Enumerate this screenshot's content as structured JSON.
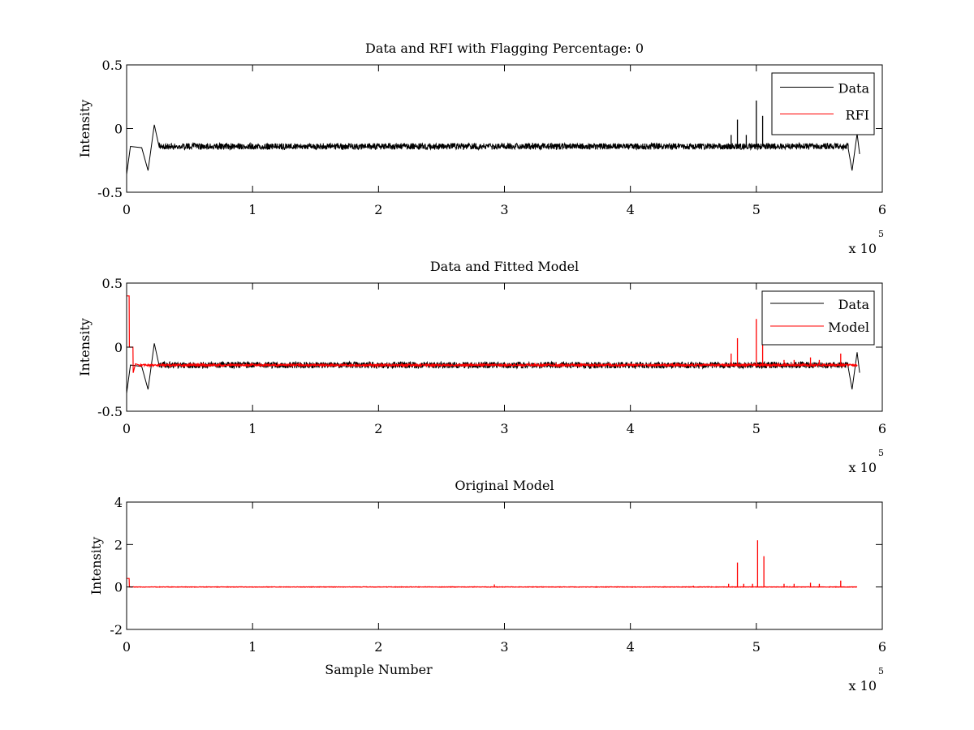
{
  "chart_data": [
    {
      "type": "line",
      "title": "Data and RFI with Flagging Percentage: 0",
      "xlabel": "",
      "ylabel": "Intensity",
      "xlim": [
        0,
        6
      ],
      "ylim": [
        -0.5,
        0.5
      ],
      "x_ticks": [
        "0",
        "1",
        "2",
        "3",
        "4",
        "5",
        "6"
      ],
      "y_ticks": [
        "0.5",
        "0",
        "-0.5"
      ],
      "x_multiplier": "x 10",
      "x_multiplier_exp": "5",
      "grid": false,
      "legend": "top-right",
      "series": [
        {
          "name": "Data",
          "color": "#000000",
          "baseline": -0.14,
          "noise": 0.025,
          "x_end": 5.8,
          "features": [
            {
              "x": 0.0,
              "y": -0.36
            },
            {
              "x": 0.03,
              "y": -0.14
            },
            {
              "x": 0.12,
              "y": -0.15
            },
            {
              "x": 0.17,
              "y": -0.33
            },
            {
              "x": 0.22,
              "y": 0.03
            },
            {
              "x": 0.26,
              "y": -0.15
            },
            {
              "x": 5.73,
              "y": -0.16
            },
            {
              "x": 5.76,
              "y": -0.33
            },
            {
              "x": 5.8,
              "y": -0.04
            },
            {
              "x": 5.82,
              "y": -0.2
            }
          ],
          "spikes": [
            {
              "x": 4.8,
              "y": -0.05
            },
            {
              "x": 4.85,
              "y": 0.07
            },
            {
              "x": 4.92,
              "y": -0.05
            },
            {
              "x": 5.0,
              "y": 0.22
            },
            {
              "x": 5.05,
              "y": 0.1
            }
          ]
        },
        {
          "name": "RFI",
          "color": "#ff0000",
          "values_note": "no visible red trace"
        }
      ]
    },
    {
      "type": "line",
      "title": "Data and Fitted Model",
      "xlabel": "",
      "ylabel": "Intensity",
      "xlim": [
        0,
        6
      ],
      "ylim": [
        -0.5,
        0.5
      ],
      "x_ticks": [
        "0",
        "1",
        "2",
        "3",
        "4",
        "5",
        "6"
      ],
      "y_ticks": [
        "0.5",
        "0",
        "-0.5"
      ],
      "x_multiplier": "x 10",
      "x_multiplier_exp": "5",
      "grid": false,
      "legend": "top-right",
      "series": [
        {
          "name": "Data",
          "color": "#000000",
          "baseline": -0.14,
          "noise": 0.025,
          "x_end": 5.8,
          "features": [
            {
              "x": 0.0,
              "y": -0.36
            },
            {
              "x": 0.03,
              "y": -0.14
            },
            {
              "x": 0.12,
              "y": -0.15
            },
            {
              "x": 0.17,
              "y": -0.33
            },
            {
              "x": 0.22,
              "y": 0.03
            },
            {
              "x": 0.26,
              "y": -0.15
            },
            {
              "x": 5.73,
              "y": -0.16
            },
            {
              "x": 5.76,
              "y": -0.33
            },
            {
              "x": 5.8,
              "y": -0.04
            },
            {
              "x": 5.82,
              "y": -0.2
            }
          ],
          "spikes": []
        },
        {
          "name": "Model",
          "color": "#ff0000",
          "baseline": -0.14,
          "noise": 0.008,
          "x_end": 5.8,
          "features": [
            {
              "x": 0.0,
              "y": 0.4
            },
            {
              "x": 0.02,
              "y": 0.4
            },
            {
              "x": 0.022,
              "y": 0.0
            },
            {
              "x": 0.05,
              "y": 0.0
            },
            {
              "x": 0.052,
              "y": -0.2
            },
            {
              "x": 0.07,
              "y": -0.13
            },
            {
              "x": 0.1,
              "y": -0.14
            }
          ],
          "spikes": [
            {
              "x": 4.8,
              "y": -0.05
            },
            {
              "x": 4.85,
              "y": 0.07
            },
            {
              "x": 5.0,
              "y": 0.22
            },
            {
              "x": 5.05,
              "y": 0.05
            },
            {
              "x": 5.22,
              "y": -0.1
            },
            {
              "x": 5.3,
              "y": -0.1
            },
            {
              "x": 5.43,
              "y": -0.08
            },
            {
              "x": 5.5,
              "y": -0.1
            },
            {
              "x": 5.67,
              "y": -0.05
            }
          ]
        }
      ]
    },
    {
      "type": "line",
      "title": "Original Model",
      "xlabel": "Sample Number",
      "ylabel": "Intensity",
      "xlim": [
        0,
        6
      ],
      "ylim": [
        -2,
        4
      ],
      "x_ticks": [
        "0",
        "1",
        "2",
        "3",
        "4",
        "5",
        "6"
      ],
      "y_ticks": [
        "4",
        "2",
        "0",
        "-2"
      ],
      "x_multiplier": "x 10",
      "x_multiplier_exp": "5",
      "grid": false,
      "legend": "none",
      "series": [
        {
          "name": "Model",
          "color": "#ff0000",
          "baseline": 0.0,
          "noise": 0.01,
          "x_end": 5.8,
          "features": [
            {
              "x": 0.0,
              "y": 0.4
            },
            {
              "x": 0.02,
              "y": 0.4
            },
            {
              "x": 0.022,
              "y": 0.0
            }
          ],
          "spikes": [
            {
              "x": 2.92,
              "y": 0.12
            },
            {
              "x": 4.5,
              "y": 0.06
            },
            {
              "x": 4.78,
              "y": 0.15
            },
            {
              "x": 4.85,
              "y": 1.15
            },
            {
              "x": 4.9,
              "y": 0.15
            },
            {
              "x": 4.97,
              "y": 0.15
            },
            {
              "x": 5.01,
              "y": 2.2
            },
            {
              "x": 5.06,
              "y": 1.45
            },
            {
              "x": 5.22,
              "y": 0.15
            },
            {
              "x": 5.3,
              "y": 0.15
            },
            {
              "x": 5.43,
              "y": 0.2
            },
            {
              "x": 5.5,
              "y": 0.15
            },
            {
              "x": 5.67,
              "y": 0.3
            }
          ]
        }
      ]
    }
  ]
}
